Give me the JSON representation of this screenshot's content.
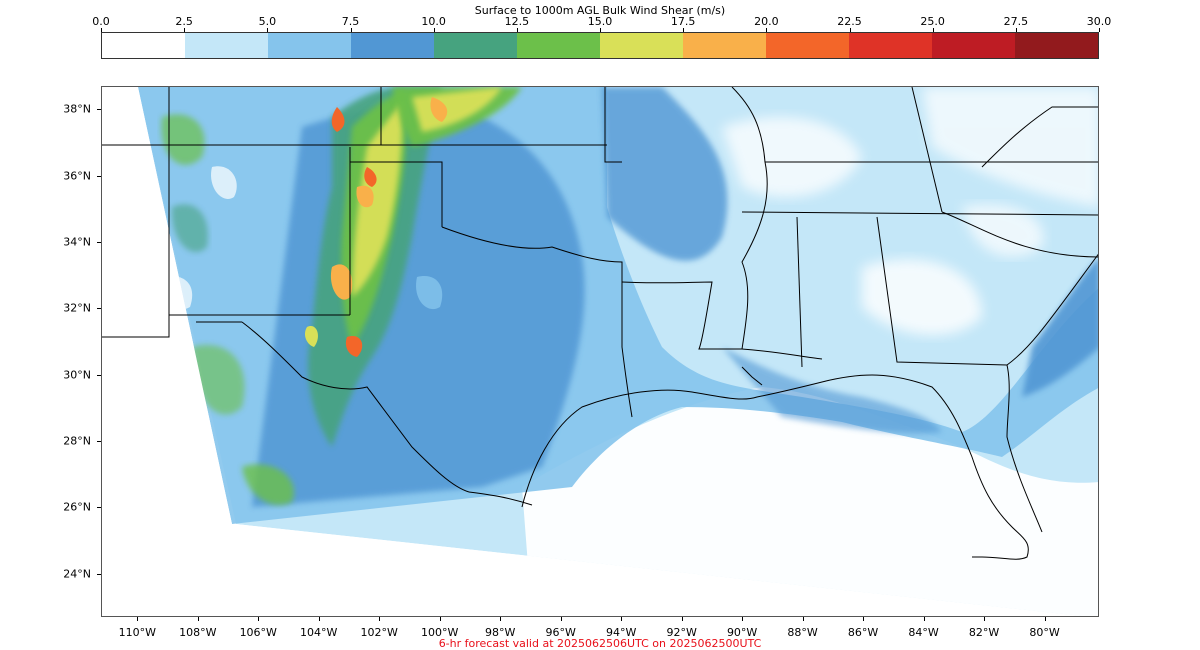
{
  "colorbar": {
    "title": "Surface to 1000m AGL Bulk Wind Shear (m/s)",
    "ticks": [
      "0.0",
      "2.5",
      "5.0",
      "7.5",
      "10.0",
      "12.5",
      "15.0",
      "17.5",
      "20.0",
      "22.5",
      "25.0",
      "27.5",
      "30.0"
    ],
    "colors": [
      "#ffffff",
      "#c4e7f8",
      "#85c4ec",
      "#5197d4",
      "#46a37f",
      "#6cc04a",
      "#d9e058",
      "#f9b04a",
      "#f36629",
      "#df3327",
      "#be1c24",
      "#921a1d"
    ]
  },
  "map": {
    "lat_labels": [
      "38°N",
      "36°N",
      "34°N",
      "32°N",
      "30°N",
      "28°N",
      "26°N",
      "24°N"
    ],
    "lon_labels": [
      "110°W",
      "108°W",
      "106°W",
      "104°W",
      "102°W",
      "100°W",
      "98°W",
      "96°W",
      "94°W",
      "92°W",
      "90°W",
      "88°W",
      "86°W",
      "84°W",
      "82°W",
      "80°W"
    ],
    "extent": {
      "lon_min": -111.2,
      "lon_max": -78.2,
      "lat_min": 22.7,
      "lat_max": 38.7
    }
  },
  "footer": "6-hr forecast valid at 2025062506UTC on 2025062500UTC"
}
